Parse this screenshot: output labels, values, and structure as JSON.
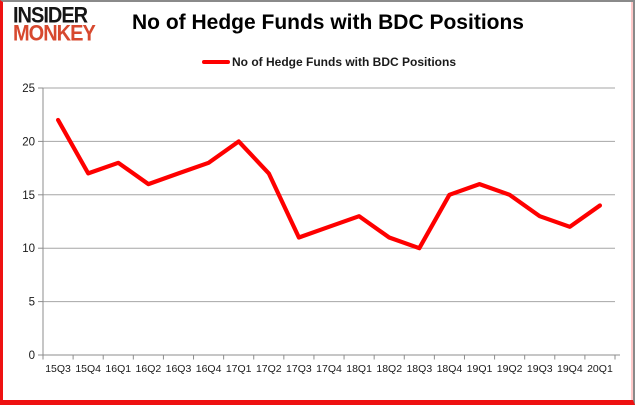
{
  "window": {
    "frame_color": "#8a8a8a",
    "accent_border_color": "#ee1111"
  },
  "brand": {
    "line1": "INSIDER",
    "line2": "MONKEY",
    "line1_color": "#151515",
    "line2_color": "#d7492f"
  },
  "header": {
    "title": "No of Hedge Funds with BDC Positions"
  },
  "legend": {
    "label": "No of Hedge Funds with BDC Positions",
    "swatch_color": "#fe0000"
  },
  "chart_data": {
    "type": "line",
    "title": "No of Hedge Funds with BDC Positions",
    "categories": [
      "15Q3",
      "15Q4",
      "16Q1",
      "16Q2",
      "16Q3",
      "16Q4",
      "17Q1",
      "17Q2",
      "17Q3",
      "17Q4",
      "18Q1",
      "18Q2",
      "18Q3",
      "18Q4",
      "19Q1",
      "19Q2",
      "19Q3",
      "19Q4",
      "20Q1"
    ],
    "series": [
      {
        "name": "No of Hedge Funds with BDC Positions",
        "color": "#fe0000",
        "values": [
          22,
          17,
          18,
          16,
          17,
          18,
          20,
          17,
          11,
          12,
          13,
          11,
          10,
          15,
          16,
          15,
          13,
          12,
          14
        ]
      }
    ],
    "ylim": [
      0,
      25
    ],
    "yticks": [
      0,
      5,
      10,
      15,
      20,
      25
    ],
    "grid": "horizontal",
    "grid_color": "#a6a6a6",
    "axis_color": "#8c8c8c",
    "tick_label_color": "#1a1a1a",
    "legend_position": "top-center",
    "background": "#ffffff"
  }
}
